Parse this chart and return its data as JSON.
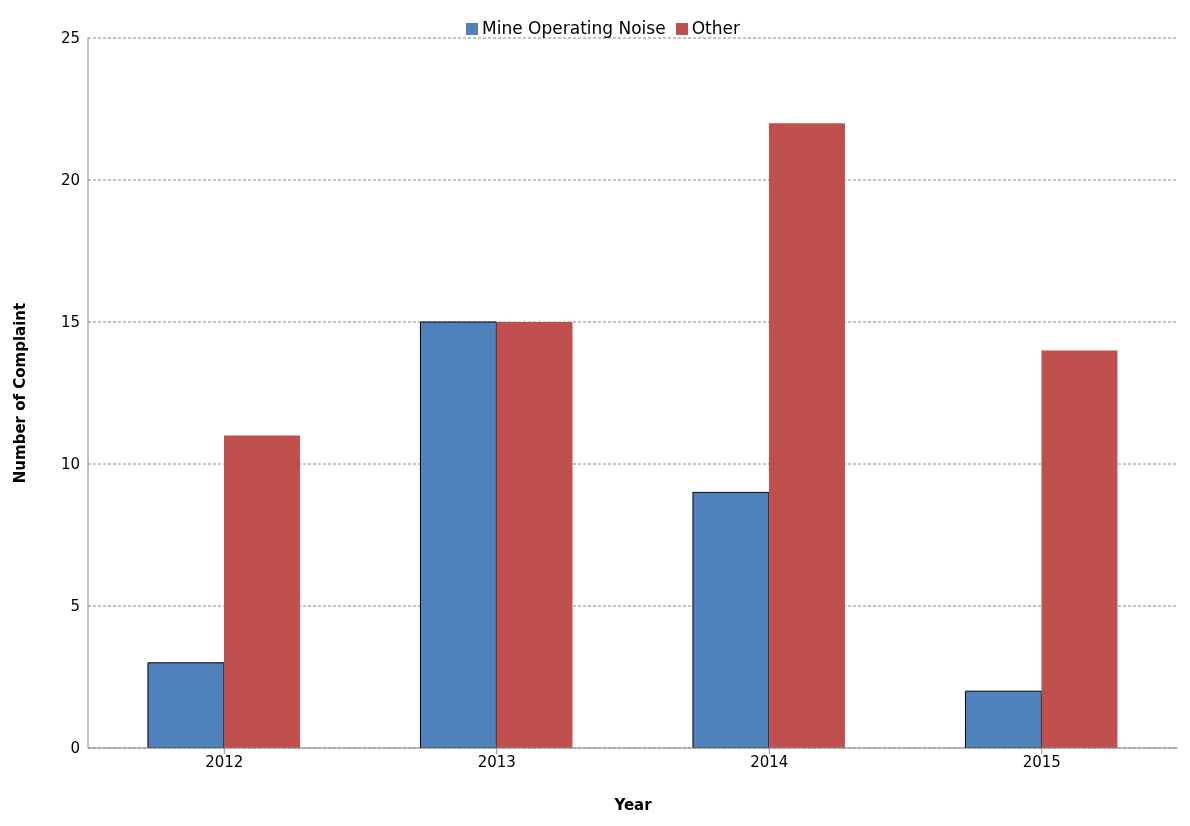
{
  "chart_data": {
    "type": "bar",
    "xlabel": "Year",
    "ylabel": "Number of Complaint",
    "categories": [
      "2012",
      "2013",
      "2014",
      "2015"
    ],
    "series": [
      {
        "name": "Mine Operating Noise",
        "color": "#4f81bd",
        "values": [
          3,
          15,
          9,
          2
        ]
      },
      {
        "name": "Other",
        "color": "#c0504d",
        "values": [
          11,
          15,
          22,
          14
        ]
      }
    ],
    "ylim": [
      0,
      25
    ],
    "yticks": [
      0,
      5,
      10,
      15,
      20,
      25
    ],
    "grid": "y",
    "legend": "top"
  }
}
